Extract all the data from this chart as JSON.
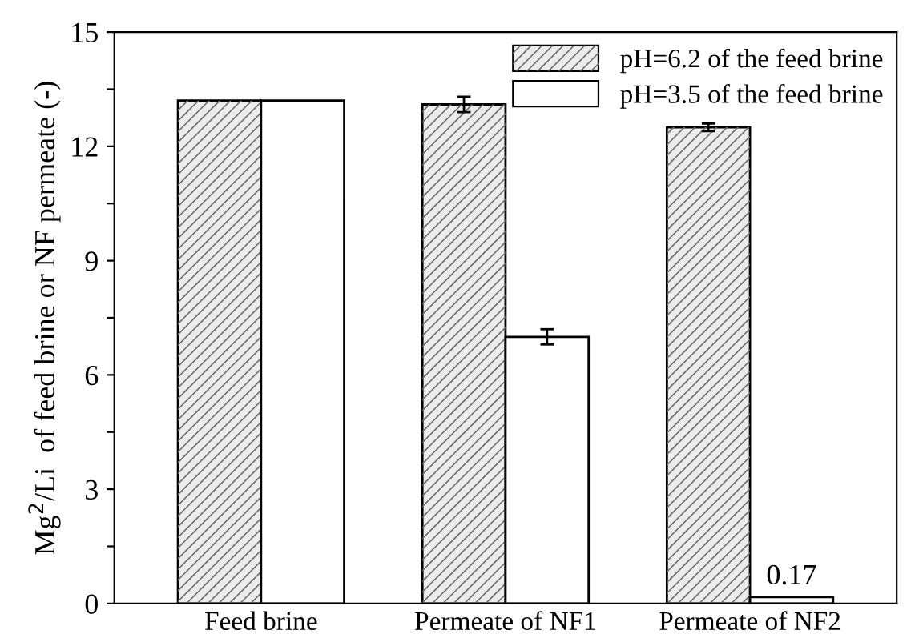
{
  "chart_data": {
    "type": "bar",
    "ylabel": "Mg$^{2}$/Li  of feed brine or NF permeate (-)",
    "categories": [
      "Feed brine",
      "Permeate of NF1",
      "Permeate of NF2"
    ],
    "series": [
      {
        "name": "pH=6.2 of the feed brine",
        "color": "#ececec",
        "values": [
          13.2,
          13.1,
          12.5
        ],
        "errors": [
          null,
          0.2,
          0.1
        ]
      },
      {
        "name": "pH=3.5 of the feed brine",
        "color": "#ffffff",
        "values": [
          13.2,
          7.0,
          0.17
        ],
        "errors": [
          null,
          0.2,
          null
        ],
        "value_labels": [
          null,
          null,
          "0.17"
        ]
      }
    ],
    "ylim": [
      0,
      15
    ],
    "yticks": [
      0,
      {
        "value": 1.5,
        "label": null
      },
      3,
      {
        "value": 4.5,
        "label": null
      },
      6,
      {
        "value": 7.5,
        "label": null
      },
      9,
      {
        "value": 10.5,
        "label": null
      },
      12,
      {
        "value": 13.5,
        "label": null
      },
      15
    ],
    "grid": false,
    "legend": "top right"
  }
}
